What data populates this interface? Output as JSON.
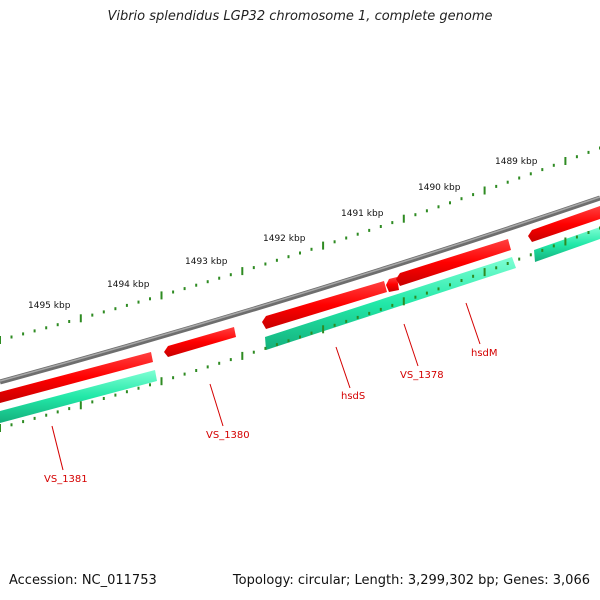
{
  "title": "Vibrio splendidus LGP32 chromosome 1, complete genome",
  "footer": {
    "accession": "Accession: NC_011753",
    "summary": "Topology: circular; Length: 3,299,302 bp; Genes: 3,066"
  },
  "ruler": {
    "tick_color": "#2e8b22",
    "labels": [
      "1489 kbp",
      "1490 kbp",
      "1491 kbp",
      "1492 kbp",
      "1493 kbp",
      "1494 kbp",
      "1495 kbp"
    ]
  },
  "backbone": {
    "color": "#808080"
  },
  "genes": [
    {
      "name": "VS_1381",
      "strand": "forward",
      "color": "#ff0000"
    },
    {
      "name": "VS_1380",
      "strand": "forward",
      "color": "#ff0000"
    },
    {
      "name": "hsdS",
      "strand": "forward",
      "color": "#ff0000"
    },
    {
      "name": "VS_1378",
      "strand": "forward",
      "color": "#ff0000"
    },
    {
      "name": "hsdM",
      "strand": "forward",
      "color": "#ff0000"
    }
  ],
  "cds_track": {
    "color": "#22e8a8"
  }
}
